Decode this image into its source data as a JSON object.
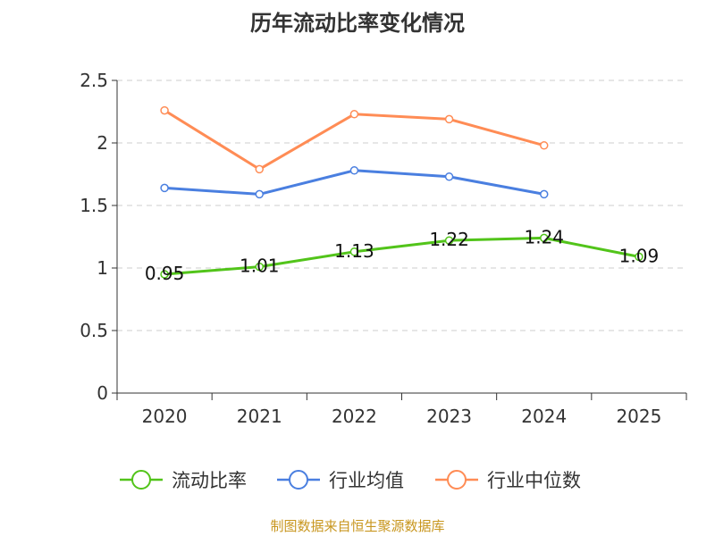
{
  "chart_data": {
    "type": "line",
    "title": "历年流动比率变化情况",
    "xlabel": "",
    "ylabel": "",
    "categories": [
      "2020",
      "2021",
      "2022",
      "2023",
      "2024",
      "2025"
    ],
    "ylim": [
      0,
      2.5
    ],
    "yticks": [
      "0",
      "0.5",
      "1",
      "1.5",
      "2",
      "2.5"
    ],
    "grid": true,
    "legend_position": "bottom",
    "series": [
      {
        "name": "流动比率",
        "color": "#52c41a",
        "values": [
          0.95,
          1.01,
          1.13,
          1.22,
          1.24,
          1.09
        ],
        "labels": [
          "0.95",
          "1.01",
          "1.13",
          "1.22",
          "1.24",
          "1.09"
        ]
      },
      {
        "name": "行业均值",
        "color": "#4a7fe0",
        "values": [
          1.64,
          1.59,
          1.78,
          1.73,
          1.59,
          null
        ]
      },
      {
        "name": "行业中位数",
        "color": "#ff8c55",
        "values": [
          2.26,
          1.79,
          2.23,
          2.19,
          1.98,
          null
        ]
      }
    ]
  },
  "footer": "制图数据来自恒生聚源数据库"
}
